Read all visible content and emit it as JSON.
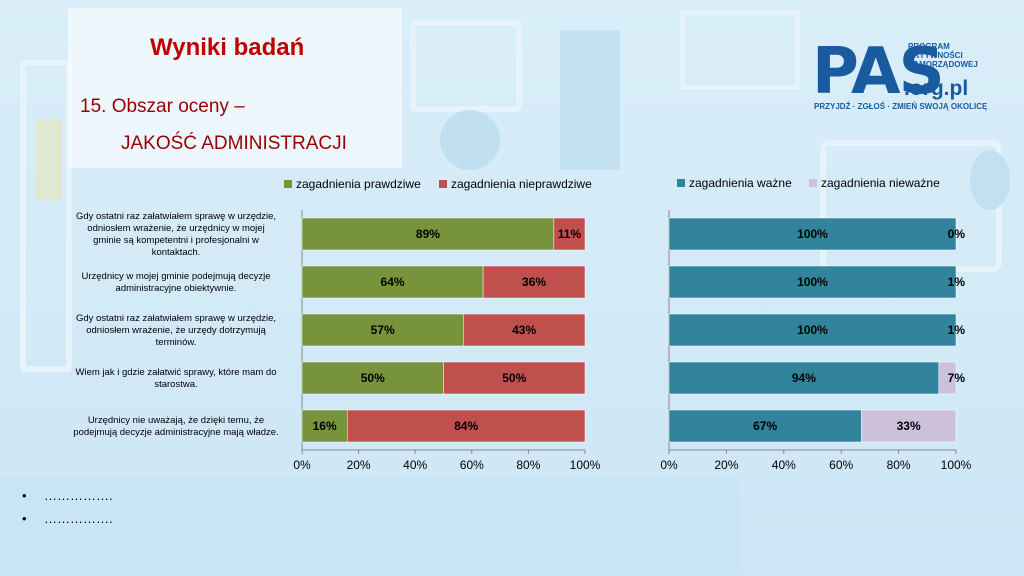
{
  "title": "Wyniki badań",
  "subtitle_line1": "15. Obszar oceny –",
  "subtitle_line2": "JAKOŚĆ ADMINISTRACJI",
  "logo": {
    "main": "PAS",
    "program": "PROGRAM AKTYWNOŚCI SAMORZĄDOWEJ",
    "domain": ".org.pl",
    "tagline": "PRZYJDŹ · ZGŁOŚ · ZMIEŃ SWOJĄ OKOLICĘ"
  },
  "bullets": [
    "…………….",
    "……………."
  ],
  "chart_data": [
    {
      "type": "bar",
      "orientation": "horizontal",
      "stacked": true,
      "categories": [
        "Gdy ostatni raz załatwiałem sprawę w urzędzie, odniosłem wrażenie, że urzędnicy w mojej gminie są kompetentni i profesjonalni w kontaktach.",
        "Urzędnicy w mojej gminie podejmują decyzje administracyjne obiektywnie.",
        "Gdy ostatni raz załatwiałem sprawę w urzędzie, odniosłem wrażenie, że urzędy dotrzymują terminów.",
        "Wiem jak i gdzie załatwić sprawy, które mam do starostwa.",
        "Urzędnicy nie uważają, że dzięki temu, że podejmują decyzje administracyjne mają władze."
      ],
      "series": [
        {
          "name": "zagadnienia prawdziwe",
          "values": [
            89,
            64,
            57,
            50,
            16
          ],
          "color": "#77933c"
        },
        {
          "name": "zagadnienia nieprawdziwe",
          "values": [
            11,
            36,
            43,
            50,
            84
          ],
          "color": "#c0504d"
        }
      ],
      "xlim": [
        0,
        100
      ],
      "xticks": [
        "0%",
        "20%",
        "40%",
        "60%",
        "80%",
        "100%"
      ],
      "legend": "top"
    },
    {
      "type": "bar",
      "orientation": "horizontal",
      "stacked": true,
      "series": [
        {
          "name": "zagadnienia ważne",
          "values": [
            100,
            100,
            100,
            94,
            67
          ],
          "color": "#31849b"
        },
        {
          "name": "zagadnienia nieważne",
          "values": [
            0,
            1,
            1,
            7,
            33
          ],
          "color": "#ccc0da"
        }
      ],
      "xlim": [
        0,
        100
      ],
      "xticks": [
        "0%",
        "20%",
        "40%",
        "60%",
        "80%",
        "100%"
      ],
      "legend": "top"
    }
  ]
}
